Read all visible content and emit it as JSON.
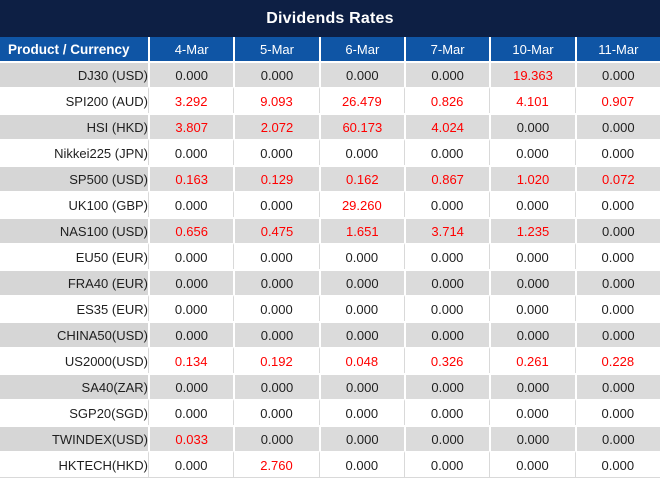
{
  "title": "Dividends Rates",
  "table": {
    "corner_header": "Product / Currency",
    "date_columns": [
      "4-Mar",
      "5-Mar",
      "6-Mar",
      "7-Mar",
      "10-Mar",
      "11-Mar"
    ],
    "rows": [
      {
        "label": "DJ30 (USD)",
        "values": [
          "0.000",
          "0.000",
          "0.000",
          "0.000",
          "19.363",
          "0.000"
        ]
      },
      {
        "label": "SPI200 (AUD)",
        "values": [
          "3.292",
          "9.093",
          "26.479",
          "0.826",
          "4.101",
          "0.907"
        ]
      },
      {
        "label": "HSI (HKD)",
        "values": [
          "3.807",
          "2.072",
          "60.173",
          "4.024",
          "0.000",
          "0.000"
        ]
      },
      {
        "label": "Nikkei225 (JPN)",
        "values": [
          "0.000",
          "0.000",
          "0.000",
          "0.000",
          "0.000",
          "0.000"
        ]
      },
      {
        "label": "SP500 (USD)",
        "values": [
          "0.163",
          "0.129",
          "0.162",
          "0.867",
          "1.020",
          "0.072"
        ]
      },
      {
        "label": "UK100 (GBP)",
        "values": [
          "0.000",
          "0.000",
          "29.260",
          "0.000",
          "0.000",
          "0.000"
        ]
      },
      {
        "label": "NAS100 (USD)",
        "values": [
          "0.656",
          "0.475",
          "1.651",
          "3.714",
          "1.235",
          "0.000"
        ]
      },
      {
        "label": "EU50 (EUR)",
        "values": [
          "0.000",
          "0.000",
          "0.000",
          "0.000",
          "0.000",
          "0.000"
        ]
      },
      {
        "label": "FRA40 (EUR)",
        "values": [
          "0.000",
          "0.000",
          "0.000",
          "0.000",
          "0.000",
          "0.000"
        ]
      },
      {
        "label": "ES35 (EUR)",
        "values": [
          "0.000",
          "0.000",
          "0.000",
          "0.000",
          "0.000",
          "0.000"
        ]
      },
      {
        "label": "CHINA50(USD)",
        "values": [
          "0.000",
          "0.000",
          "0.000",
          "0.000",
          "0.000",
          "0.000"
        ]
      },
      {
        "label": "US2000(USD)",
        "values": [
          "0.134",
          "0.192",
          "0.048",
          "0.326",
          "0.261",
          "0.228"
        ]
      },
      {
        "label": "SA40(ZAR)",
        "values": [
          "0.000",
          "0.000",
          "0.000",
          "0.000",
          "0.000",
          "0.000"
        ]
      },
      {
        "label": "SGP20(SGD)",
        "values": [
          "0.000",
          "0.000",
          "0.000",
          "0.000",
          "0.000",
          "0.000"
        ]
      },
      {
        "label": "TWINDEX(USD)",
        "values": [
          "0.033",
          "0.000",
          "0.000",
          "0.000",
          "0.000",
          "0.000"
        ]
      },
      {
        "label": "HKTECH(HKD)",
        "values": [
          "0.000",
          "2.760",
          "0.000",
          "0.000",
          "0.000",
          "0.000"
        ]
      }
    ]
  },
  "colors": {
    "title_bg": "#0D1F44",
    "header_bg": "#0F55A5",
    "header_text": "#FFFFFF",
    "row_gray_bg": "#DBDBDB",
    "row_gray_label_bg": "#D6D6D6",
    "row_white_bg": "#FFFFFF",
    "value_zero": "#1F1F1F",
    "value_nonzero": "#FF0000",
    "grid_white": "#FFFFFF",
    "grid_gray": "#D9D9D9"
  }
}
